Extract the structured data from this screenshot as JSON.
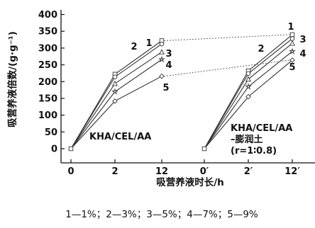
{
  "chart_data": {
    "type": "line",
    "ylabel": "吸营养液倍数/(g·g⁻¹)",
    "xlabel": "吸营养液时长/h",
    "ylim": [
      0,
      400
    ],
    "yticks": [
      "0",
      "50",
      "100",
      "150",
      "200",
      "250",
      "300",
      "350",
      "400"
    ],
    "xticks": [
      "0",
      "2",
      "12",
      "0′",
      "2′",
      "12′"
    ],
    "grid": false,
    "groups": [
      {
        "label_lines": [
          "KHA/CEL/AA"
        ],
        "x": [
          "0",
          "2",
          "12"
        ],
        "series": [
          {
            "name": "1",
            "values": [
              0,
              222,
              322
            ]
          },
          {
            "name": "2",
            "values": [
              0,
              214,
              312
            ]
          },
          {
            "name": "3",
            "values": [
              0,
              194,
              288
            ]
          },
          {
            "name": "4",
            "values": [
              0,
              170,
              266
            ]
          },
          {
            "name": "5",
            "values": [
              0,
              142,
              216
            ]
          }
        ]
      },
      {
        "label_lines": [
          "KHA/CEL/AA",
          "–膨润土",
          "(r=1∶0.8)"
        ],
        "x": [
          "0′",
          "2′",
          "12′"
        ],
        "series": [
          {
            "name": "1",
            "values": [
              0,
              232,
              340
            ]
          },
          {
            "name": "2",
            "values": [
              0,
              224,
              328
            ]
          },
          {
            "name": "3",
            "values": [
              0,
              207,
              314
            ]
          },
          {
            "name": "4",
            "values": [
              0,
              185,
              290
            ]
          },
          {
            "name": "5",
            "values": [
              0,
              155,
              264
            ]
          }
        ]
      }
    ],
    "series_labels": [
      "1",
      "2",
      "3",
      "4",
      "5"
    ],
    "legend": "1—1%；2—3%；3—5%；4—7%；5—9%"
  },
  "colors": {
    "axis": "#111111",
    "line": "#333333",
    "connector": "#555555"
  }
}
